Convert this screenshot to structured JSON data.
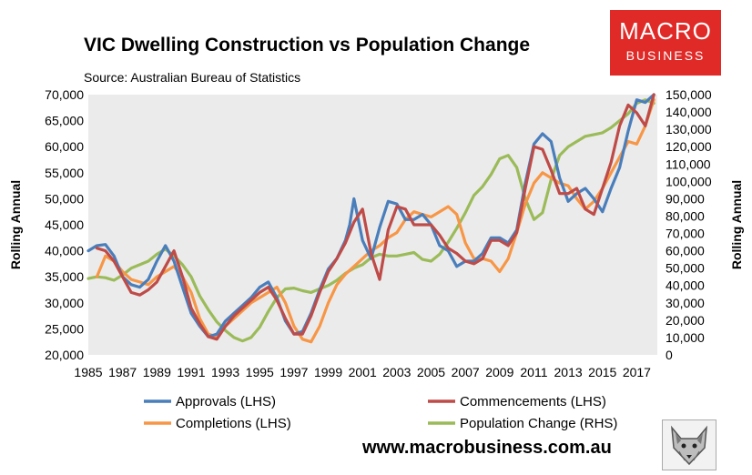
{
  "title": "VIC Dwelling Construction vs Population Change",
  "source": "Source: Australian Bureau of Statistics",
  "logo": {
    "line1": "MACRO",
    "line2": "BUSINESS"
  },
  "website": "www.macrobusiness.com.au",
  "colors": {
    "approvals": "#4a7ebb",
    "commencements": "#be4b48",
    "completions": "#f79646",
    "population": "#9bbb59",
    "plot_bg": "#ebebeb",
    "logo_bg": "#e02a27"
  },
  "chart_data": {
    "type": "line",
    "title": "VIC Dwelling Construction vs Population Change",
    "y_left_label": "Rolling Annual",
    "y_right_label": "Rolling Annual",
    "y_left_range": [
      20000,
      70000
    ],
    "y_right_range": [
      0,
      150000
    ],
    "y_left_ticks": [
      "20,000",
      "25,000",
      "30,000",
      "35,000",
      "40,000",
      "45,000",
      "50,000",
      "55,000",
      "60,000",
      "65,000",
      "70,000"
    ],
    "y_right_ticks": [
      "0",
      "10,000",
      "20,000",
      "30,000",
      "40,000",
      "50,000",
      "60,000",
      "70,000",
      "80,000",
      "90,000",
      "100,000",
      "110,000",
      "120,000",
      "130,000",
      "140,000",
      "150,000"
    ],
    "x_range": [
      1985,
      2018.2
    ],
    "x_ticks": [
      "1985",
      "1987",
      "1989",
      "1991",
      "1993",
      "1995",
      "1997",
      "1999",
      "2001",
      "2003",
      "2005",
      "2007",
      "2009",
      "2011",
      "2013",
      "2015",
      "2017"
    ],
    "grid": false,
    "legend_position": "bottom",
    "series": [
      {
        "name": "Approvals (LHS)",
        "axis": "left",
        "x": [
          1985,
          1985.5,
          1986,
          1986.5,
          1987,
          1987.5,
          1988,
          1988.5,
          1989,
          1989.5,
          1990,
          1990.5,
          1991,
          1991.5,
          1992,
          1992.5,
          1993,
          1993.5,
          1994,
          1994.5,
          1995,
          1995.5,
          1996,
          1996.5,
          1997,
          1997.5,
          1998,
          1998.5,
          1999,
          1999.5,
          2000,
          2000.25,
          2000.5,
          2001,
          2001.5,
          2002,
          2002.5,
          2003,
          2003.5,
          2004,
          2004.5,
          2005,
          2005.5,
          2006,
          2006.5,
          2007,
          2007.5,
          2008,
          2008.5,
          2009,
          2009.5,
          2010,
          2010.5,
          2011,
          2011.5,
          2012,
          2012.5,
          2013,
          2013.5,
          2014,
          2014.5,
          2015,
          2015.5,
          2016,
          2016.5,
          2017,
          2017.5,
          2018
        ],
        "y": [
          40000,
          41000,
          41200,
          39000,
          35000,
          33500,
          33000,
          34500,
          38000,
          41000,
          38000,
          33000,
          28000,
          25500,
          23500,
          24000,
          26500,
          28000,
          29500,
          31000,
          33000,
          34000,
          31000,
          26500,
          24000,
          24500,
          28000,
          32500,
          36500,
          38500,
          42000,
          45000,
          50000,
          42000,
          38500,
          44500,
          49500,
          49000,
          46000,
          46000,
          47000,
          45000,
          41000,
          40000,
          37000,
          38000,
          38000,
          39500,
          42500,
          42500,
          41500,
          44000,
          53000,
          60500,
          62500,
          61000,
          54000,
          49500,
          51000,
          52000,
          50000,
          47500,
          52000,
          56000,
          63000,
          69000,
          68500,
          70000
        ]
      },
      {
        "name": "Commencements (LHS)",
        "axis": "left",
        "x": [
          1985.5,
          1986,
          1986.5,
          1987,
          1987.5,
          1988,
          1988.5,
          1989,
          1989.5,
          1990,
          1990.5,
          1991,
          1991.5,
          1992,
          1992.5,
          1993,
          1993.5,
          1994,
          1994.5,
          1995,
          1995.5,
          1996,
          1996.5,
          1997,
          1997.5,
          1998,
          1998.5,
          1999,
          1999.5,
          2000,
          2000.5,
          2001,
          2001.5,
          2002,
          2002.5,
          2003,
          2003.5,
          2004,
          2004.5,
          2005,
          2005.5,
          2006,
          2006.5,
          2007,
          2007.5,
          2008,
          2008.5,
          2009,
          2009.5,
          2010,
          2010.5,
          2011,
          2011.5,
          2012,
          2012.5,
          2013,
          2013.5,
          2014,
          2014.5,
          2015,
          2015.5,
          2016,
          2016.5,
          2017,
          2017.5,
          2018
        ],
        "y": [
          40500,
          40000,
          38000,
          35000,
          32000,
          31500,
          32500,
          34000,
          37000,
          40000,
          35000,
          29000,
          26000,
          23500,
          23000,
          25500,
          27500,
          29000,
          30500,
          32000,
          33000,
          30500,
          27000,
          24000,
          24000,
          27500,
          32000,
          36000,
          38500,
          41500,
          45500,
          48000,
          39500,
          34500,
          44000,
          48500,
          48000,
          45000,
          45000,
          45000,
          43000,
          40500,
          39500,
          38000,
          37500,
          38500,
          42000,
          42000,
          41000,
          43500,
          52000,
          60000,
          59500,
          55500,
          51000,
          51000,
          52000,
          48000,
          47000,
          52000,
          57000,
          64000,
          68000,
          66500,
          64000,
          70000
        ]
      },
      {
        "name": "Completions (LHS)",
        "axis": "left",
        "x": [
          1985.5,
          1986,
          1986.5,
          1987,
          1987.5,
          1988,
          1988.5,
          1989,
          1989.5,
          1990,
          1990.5,
          1991,
          1991.5,
          1992,
          1992.5,
          1993,
          1993.5,
          1994,
          1994.5,
          1995,
          1995.5,
          1996,
          1996.5,
          1997,
          1997.5,
          1998,
          1998.5,
          1999,
          1999.5,
          2000,
          2000.5,
          2001,
          2001.5,
          2002,
          2002.5,
          2003,
          2003.5,
          2004,
          2004.5,
          2005,
          2005.5,
          2006,
          2006.5,
          2007,
          2007.5,
          2008,
          2008.5,
          2009,
          2009.5,
          2010,
          2010.5,
          2011,
          2011.5,
          2012,
          2012.5,
          2013,
          2013.5,
          2014,
          2014.5,
          2015,
          2015.5,
          2016,
          2016.5,
          2017,
          2017.5,
          2018
        ],
        "y": [
          35000,
          39000,
          38000,
          36000,
          34500,
          34000,
          33500,
          35000,
          36000,
          37000,
          35000,
          32000,
          27000,
          24000,
          23500,
          25500,
          27000,
          28500,
          30000,
          31000,
          32000,
          33000,
          30000,
          25500,
          23000,
          22500,
          25500,
          30000,
          33500,
          35500,
          37000,
          38500,
          40000,
          41000,
          42500,
          43500,
          46000,
          47500,
          47000,
          46500,
          47500,
          48500,
          47000,
          41500,
          38500,
          38500,
          38000,
          36000,
          38500,
          43500,
          49000,
          53000,
          55000,
          54000,
          53000,
          52500,
          50000,
          48000,
          49500,
          52000,
          55000,
          58000,
          61000,
          60500,
          64000,
          69000
        ]
      },
      {
        "name": "Population Change (RHS)",
        "axis": "right",
        "x": [
          1985,
          1985.5,
          1986,
          1986.5,
          1987,
          1987.5,
          1988,
          1988.5,
          1989,
          1989.5,
          1990,
          1990.5,
          1991,
          1991.5,
          1992,
          1992.5,
          1993,
          1993.5,
          1994,
          1994.5,
          1995,
          1995.5,
          1996,
          1996.5,
          1997,
          1997.5,
          1998,
          1998.5,
          1999,
          1999.5,
          2000,
          2000.5,
          2001,
          2001.5,
          2002,
          2002.5,
          2003,
          2003.5,
          2004,
          2004.5,
          2005,
          2005.5,
          2006,
          2006.5,
          2007,
          2007.5,
          2008,
          2008.5,
          2009,
          2009.5,
          2010,
          2010.5,
          2011,
          2011.5,
          2012,
          2012.5,
          2013,
          2013.5,
          2014,
          2014.5,
          2015,
          2015.5,
          2016,
          2016.5,
          2017,
          2017.5,
          2018
        ],
        "y": [
          44000,
          45000,
          44500,
          43000,
          46000,
          50000,
          52000,
          54000,
          58000,
          61000,
          57000,
          52000,
          45000,
          34000,
          26000,
          19000,
          14000,
          10000,
          8000,
          10000,
          16000,
          25000,
          33000,
          38000,
          38500,
          37000,
          36000,
          38000,
          40000,
          43000,
          47000,
          50000,
          52000,
          56000,
          58000,
          57000,
          57000,
          58000,
          59000,
          55000,
          54000,
          58000,
          65000,
          73000,
          82000,
          92000,
          97000,
          104000,
          113000,
          115000,
          108000,
          90000,
          78000,
          82000,
          101000,
          115000,
          120000,
          123000,
          126000,
          127000,
          128000,
          131000,
          135000,
          139000,
          145000,
          147000,
          145000
        ]
      }
    ]
  }
}
